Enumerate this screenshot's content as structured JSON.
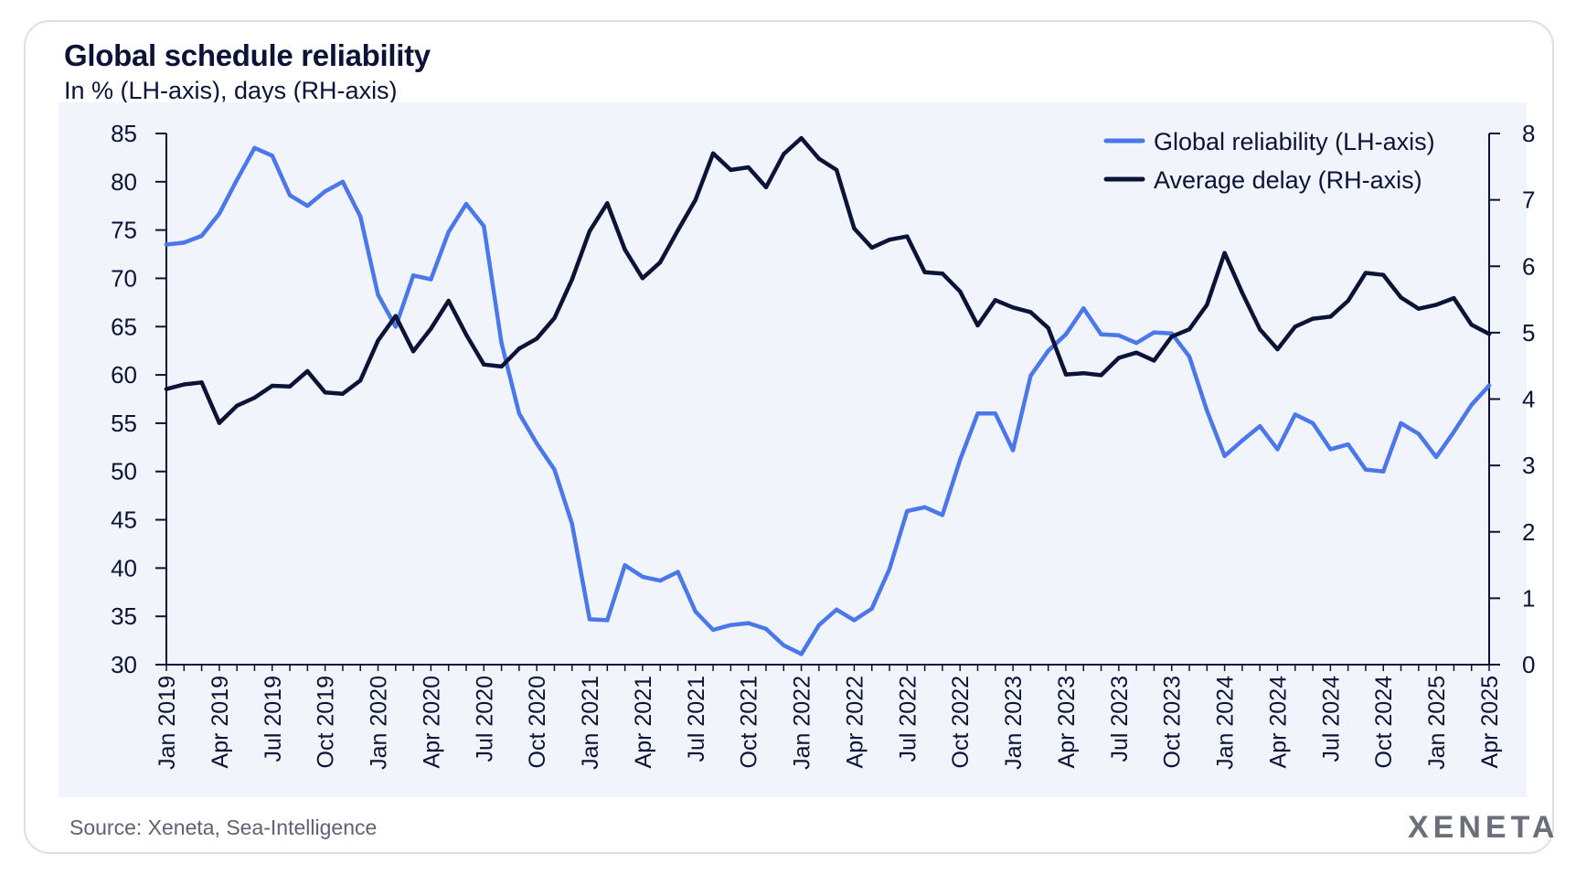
{
  "header": {
    "title": "Global schedule reliability",
    "subtitle": "In % (LH-axis), days (RH-axis)"
  },
  "footer": {
    "source": "Source: Xeneta, Sea-Intelligence",
    "brand": "XENETA"
  },
  "colors": {
    "reliability": "#4a78ea",
    "delay": "#0b1437",
    "plot_bg": "#f2f4fb"
  },
  "chart_data": {
    "type": "line",
    "title": "Global schedule reliability",
    "subtitle": "In % (LH-axis), days (RH-axis)",
    "x": [
      "Jan 2019",
      "Feb 2019",
      "Mar 2019",
      "Apr 2019",
      "May 2019",
      "Jun 2019",
      "Jul 2019",
      "Aug 2019",
      "Sep 2019",
      "Oct 2019",
      "Nov 2019",
      "Dec 2019",
      "Jan 2020",
      "Feb 2020",
      "Mar 2020",
      "Apr 2020",
      "May 2020",
      "Jun 2020",
      "Jul 2020",
      "Aug 2020",
      "Sep 2020",
      "Oct 2020",
      "Nov 2020",
      "Dec 2020",
      "Jan 2021",
      "Feb 2021",
      "Mar 2021",
      "Apr 2021",
      "May 2021",
      "Jun 2021",
      "Jul 2021",
      "Aug 2021",
      "Sep 2021",
      "Oct 2021",
      "Nov 2021",
      "Dec 2021",
      "Jan 2022",
      "Feb 2022",
      "Mar 2022",
      "Apr 2022",
      "May 2022",
      "Jun 2022",
      "Jul 2022",
      "Aug 2022",
      "Sep 2022",
      "Oct 2022",
      "Nov 2022",
      "Dec 2022",
      "Jan 2023",
      "Feb 2023",
      "Mar 2023",
      "Apr 2023",
      "May 2023",
      "Jun 2023",
      "Jul 2023",
      "Aug 2023",
      "Sep 2023",
      "Oct 2023",
      "Nov 2023",
      "Dec 2023",
      "Jan 2024",
      "Feb 2024",
      "Mar 2024",
      "Apr 2024",
      "May 2024",
      "Jun 2024",
      "Jul 2024",
      "Aug 2024",
      "Sep 2024",
      "Oct 2024",
      "Nov 2024",
      "Dec 2024",
      "Jan 2025",
      "Feb 2025",
      "Mar 2025",
      "Apr 2025"
    ],
    "x_tick_labels": [
      "Jan 2019",
      "Apr 2019",
      "Jul 2019",
      "Oct 2019",
      "Jan 2020",
      "Apr 2020",
      "Jul 2020",
      "Oct 2020",
      "Jan 2021",
      "Apr 2021",
      "Jul 2021",
      "Oct 2021",
      "Jan 2022",
      "Apr 2022",
      "Jul 2022",
      "Oct 2022",
      "Jan 2023",
      "Apr 2023",
      "Jul 2023",
      "Oct 2023",
      "Jan 2024",
      "Apr 2024",
      "Jul 2024",
      "Oct 2024",
      "Jan 2025",
      "Apr 2025"
    ],
    "series": [
      {
        "name": "Global reliability (LH-axis)",
        "axis": "left",
        "values": [
          73.5,
          73.7,
          74.4,
          76.7,
          80.2,
          83.5,
          82.7,
          78.6,
          77.5,
          79.0,
          80.0,
          76.4,
          68.3,
          65.0,
          70.3,
          69.9,
          74.8,
          77.7,
          75.4,
          63.3,
          56.0,
          52.9,
          50.2,
          44.6,
          34.7,
          34.6,
          40.3,
          39.1,
          38.7,
          39.6,
          35.5,
          33.6,
          34.1,
          34.3,
          33.7,
          32.0,
          31.1,
          34.1,
          35.7,
          34.6,
          35.8,
          39.9,
          45.9,
          46.3,
          45.5,
          51.2,
          56.0,
          56.0,
          52.2,
          59.9,
          62.5,
          64.2,
          66.9,
          64.2,
          64.1,
          63.3,
          64.4,
          64.3,
          61.9,
          56.3,
          51.6,
          53.2,
          54.7,
          52.3,
          55.9,
          55.0,
          52.3,
          52.8,
          50.2,
          50.0,
          55.0,
          53.9,
          51.5,
          54.1,
          56.9,
          58.9
        ]
      },
      {
        "name": "Average delay (RH-axis)",
        "axis": "right",
        "values": [
          4.15,
          4.22,
          4.25,
          3.64,
          3.9,
          4.02,
          4.2,
          4.19,
          4.42,
          4.1,
          4.08,
          4.28,
          4.88,
          5.25,
          4.72,
          5.06,
          5.48,
          4.97,
          4.52,
          4.49,
          4.76,
          4.91,
          5.22,
          5.8,
          6.53,
          6.95,
          6.25,
          5.82,
          6.06,
          6.54,
          7.0,
          7.7,
          7.45,
          7.49,
          7.19,
          7.69,
          7.93,
          7.62,
          7.45,
          6.57,
          6.28,
          6.4,
          6.45,
          5.91,
          5.89,
          5.62,
          5.11,
          5.49,
          5.38,
          5.31,
          5.07,
          4.37,
          4.39,
          4.36,
          4.62,
          4.7,
          4.58,
          4.94,
          5.05,
          5.42,
          6.2,
          5.6,
          5.05,
          4.75,
          5.09,
          5.21,
          5.24,
          5.48,
          5.9,
          5.87,
          5.53,
          5.36,
          5.42,
          5.52,
          5.12,
          4.98
        ]
      }
    ],
    "y_left": {
      "label": "%",
      "min": 30,
      "max": 85,
      "ticks": [
        30,
        35,
        40,
        45,
        50,
        55,
        60,
        65,
        70,
        75,
        80,
        85
      ]
    },
    "y_right": {
      "label": "days",
      "min": 0,
      "max": 8,
      "ticks": [
        0,
        1,
        2,
        3,
        4,
        5,
        6,
        7,
        8
      ]
    },
    "legend": {
      "position": "top-right",
      "entries": [
        "Global reliability (LH-axis)",
        "Average delay (RH-axis)"
      ]
    },
    "grid": false
  }
}
